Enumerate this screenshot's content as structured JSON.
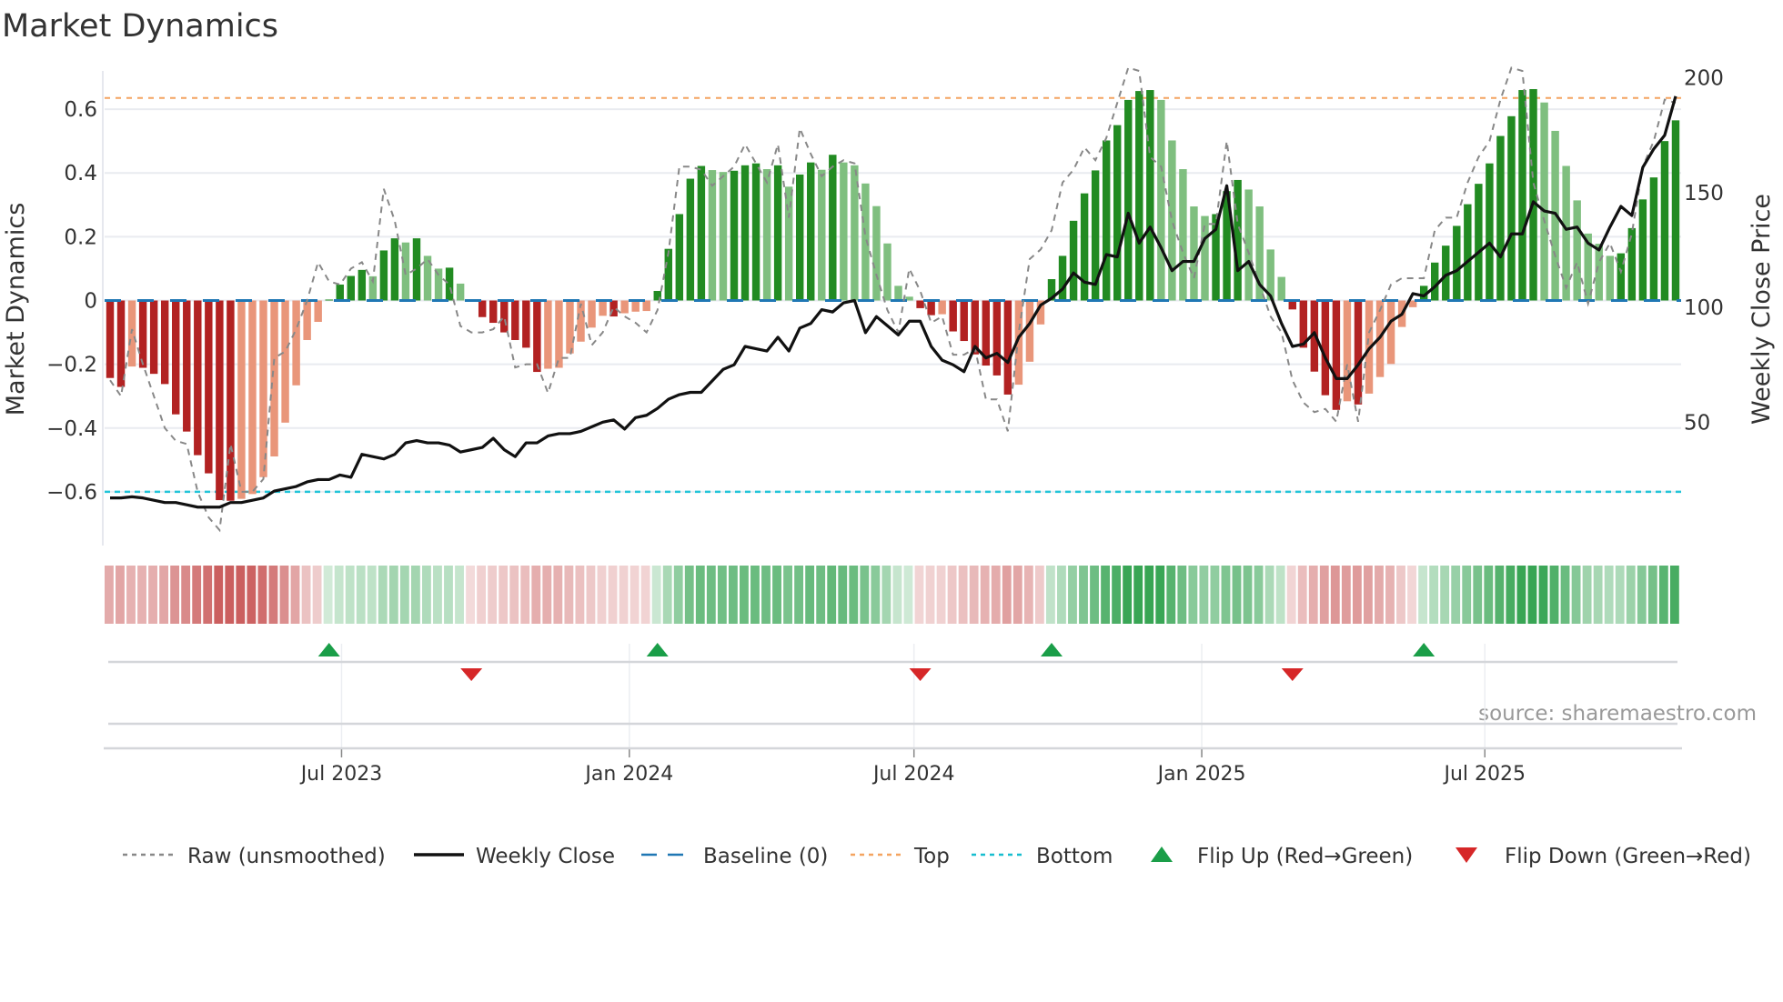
{
  "chart_data": {
    "type": "bar",
    "title": "Market Dynamics",
    "ylabel": "Market Dynamics",
    "y2label": "Weekly Close Price",
    "ylim": [
      -0.72,
      0.72
    ],
    "y2lim": [
      3,
      203
    ],
    "yticks": [
      0.6,
      0.4,
      0.2,
      0,
      -0.2,
      -0.4,
      -0.6
    ],
    "ytick_labels": [
      "0.6",
      "0.4",
      "0.2",
      "0",
      "−0.2",
      "−0.4",
      "−0.6"
    ],
    "y2ticks": [
      200,
      150,
      100,
      50
    ],
    "y2tick_labels": [
      "200",
      "150",
      "100",
      "50"
    ],
    "start_week": "2023-02-03",
    "weeks": 144,
    "xticks": [
      {
        "label": "Jul 2023",
        "date": "2023-07-01"
      },
      {
        "label": "Jan 2024",
        "date": "2024-01-01"
      },
      {
        "label": "Jul 2024",
        "date": "2024-07-01"
      },
      {
        "label": "Jan 2025",
        "date": "2025-01-01"
      },
      {
        "label": "Jul 2025",
        "date": "2025-07-01"
      }
    ],
    "top_level": 0.635,
    "bottom_level": -0.6,
    "baseline": 0,
    "smoothed": [
      -0.243,
      -0.271,
      -0.207,
      -0.211,
      -0.23,
      -0.262,
      -0.357,
      -0.411,
      -0.485,
      -0.542,
      -0.626,
      -0.628,
      -0.622,
      -0.607,
      -0.554,
      -0.489,
      -0.383,
      -0.266,
      -0.124,
      -0.067,
      0.003,
      0.05,
      0.077,
      0.096,
      0.076,
      0.157,
      0.195,
      0.182,
      0.195,
      0.14,
      0.1,
      0.103,
      0.053,
      -0.003,
      -0.052,
      -0.07,
      -0.1,
      -0.124,
      -0.148,
      -0.224,
      -0.214,
      -0.211,
      -0.166,
      -0.129,
      -0.085,
      -0.048,
      -0.05,
      -0.04,
      -0.035,
      -0.033,
      0.03,
      0.162,
      0.271,
      0.382,
      0.422,
      0.409,
      0.403,
      0.407,
      0.424,
      0.43,
      0.412,
      0.424,
      0.357,
      0.395,
      0.433,
      0.41,
      0.457,
      0.433,
      0.424,
      0.367,
      0.296,
      0.179,
      0.046,
      0.012,
      -0.024,
      -0.046,
      -0.043,
      -0.097,
      -0.127,
      -0.169,
      -0.204,
      -0.235,
      -0.295,
      -0.264,
      -0.192,
      -0.075,
      0.067,
      0.14,
      0.25,
      0.336,
      0.408,
      0.502,
      0.55,
      0.629,
      0.657,
      0.66,
      0.629,
      0.502,
      0.412,
      0.295,
      0.265,
      0.271,
      0.343,
      0.378,
      0.348,
      0.295,
      0.16,
      0.074,
      -0.028,
      -0.148,
      -0.223,
      -0.297,
      -0.343,
      -0.316,
      -0.326,
      -0.292,
      -0.24,
      -0.199,
      -0.083,
      -0.021,
      0.046,
      0.119,
      0.172,
      0.234,
      0.302,
      0.366,
      0.43,
      0.516,
      0.578,
      0.66,
      0.663,
      0.621,
      0.532,
      0.422,
      0.314,
      0.21,
      0.178,
      0.14,
      0.148,
      0.227,
      0.317,
      0.386,
      0.5,
      0.565
    ],
    "raw": [
      -0.25,
      -0.3,
      -0.09,
      -0.2,
      -0.3,
      -0.4,
      -0.44,
      -0.45,
      -0.6,
      -0.68,
      -0.72,
      -0.45,
      -0.6,
      -0.6,
      -0.56,
      -0.18,
      -0.16,
      -0.09,
      0.0,
      0.12,
      0.06,
      0.05,
      0.1,
      0.12,
      0.06,
      0.35,
      0.25,
      0.08,
      0.1,
      0.13,
      0.08,
      0.05,
      -0.08,
      -0.1,
      -0.1,
      -0.09,
      -0.05,
      -0.21,
      -0.2,
      -0.2,
      -0.29,
      -0.18,
      -0.18,
      -0.01,
      -0.14,
      -0.1,
      -0.02,
      -0.05,
      -0.07,
      -0.1,
      -0.03,
      0.15,
      0.42,
      0.42,
      0.41,
      0.36,
      0.39,
      0.42,
      0.49,
      0.43,
      0.37,
      0.49,
      0.26,
      0.54,
      0.46,
      0.39,
      0.42,
      0.44,
      0.43,
      0.2,
      0.08,
      -0.03,
      -0.1,
      0.1,
      0.03,
      -0.07,
      -0.05,
      -0.17,
      -0.17,
      -0.15,
      -0.31,
      -0.31,
      -0.41,
      -0.1,
      0.13,
      0.16,
      0.22,
      0.37,
      0.41,
      0.48,
      0.44,
      0.51,
      0.62,
      0.73,
      0.72,
      0.45,
      0.42,
      0.25,
      0.15,
      0.07,
      0.24,
      0.24,
      0.5,
      0.24,
      0.15,
      0.05,
      -0.05,
      -0.1,
      -0.25,
      -0.32,
      -0.35,
      -0.34,
      -0.38,
      -0.2,
      -0.38,
      -0.1,
      -0.03,
      0.05,
      0.07,
      0.07,
      0.07,
      0.22,
      0.26,
      0.26,
      0.37,
      0.45,
      0.5,
      0.63,
      0.73,
      0.72,
      0.37,
      0.25,
      0.14,
      0.04,
      0.12,
      -0.01,
      0.12,
      0.18,
      0.09,
      0.21,
      0.42,
      0.5,
      0.63,
      0.62
    ],
    "close": [
      17,
      17,
      17.5,
      17,
      16,
      15,
      15,
      14,
      13,
      13,
      13,
      15,
      15,
      16,
      17,
      20,
      21,
      22,
      24,
      25,
      25,
      27,
      26,
      36,
      35,
      34,
      36,
      41,
      42,
      41,
      41,
      40,
      37,
      38,
      39,
      43,
      38,
      35,
      41,
      41,
      44,
      45,
      45,
      46,
      48,
      50,
      51,
      47,
      52,
      53,
      56,
      60,
      62,
      63,
      63,
      68,
      73,
      75,
      83,
      82,
      81,
      87,
      81,
      91,
      93,
      99,
      98,
      102,
      103,
      89,
      96,
      92,
      88,
      94,
      94,
      83,
      77,
      75,
      72,
      83,
      78,
      80,
      76,
      87,
      93,
      101,
      104,
      108,
      115,
      111,
      110,
      123,
      122,
      141,
      128,
      135,
      126,
      116,
      120,
      120,
      130,
      134,
      153,
      116,
      120,
      110,
      105,
      93,
      83,
      84,
      89,
      78,
      69,
      69,
      75,
      82,
      87,
      94,
      97,
      106,
      105,
      109,
      114,
      116,
      120,
      124,
      128,
      122,
      132,
      132,
      146,
      142,
      141,
      134,
      135,
      128,
      125,
      135,
      144,
      140,
      161,
      169,
      175,
      192
    ],
    "flips_up_week_index": [
      20,
      50,
      86,
      120
    ],
    "flips_down_week_index": [
      33,
      74,
      108
    ],
    "legend": {
      "placement": "bottom",
      "items": [
        {
          "label": "Raw (unsmoothed)",
          "kind": "dashed",
          "color": "#888888"
        },
        {
          "label": "Weekly Close",
          "kind": "line",
          "color": "#111111"
        },
        {
          "label": "Baseline (0)",
          "kind": "longdash",
          "color": "#1f77b4"
        },
        {
          "label": "Top",
          "kind": "dashed",
          "color": "#f4a460"
        },
        {
          "label": "Bottom",
          "kind": "dashed",
          "color": "#17becf"
        },
        {
          "label": "Flip Up (Red→Green)",
          "kind": "up",
          "color": "#1a9e48"
        },
        {
          "label": "Flip Down (Green→Red)",
          "kind": "down",
          "color": "#d62728"
        }
      ]
    },
    "colors": {
      "neg_strong": "#b22222",
      "neg_weak": "#e9967a",
      "pos_strong": "#228b22",
      "pos_weak": "#7fbf7f",
      "heat_neg": "200,85,85",
      "heat_pos": "45,160,75",
      "grid": "#e9ebf0"
    },
    "source": "source: sharemaestro.com"
  }
}
